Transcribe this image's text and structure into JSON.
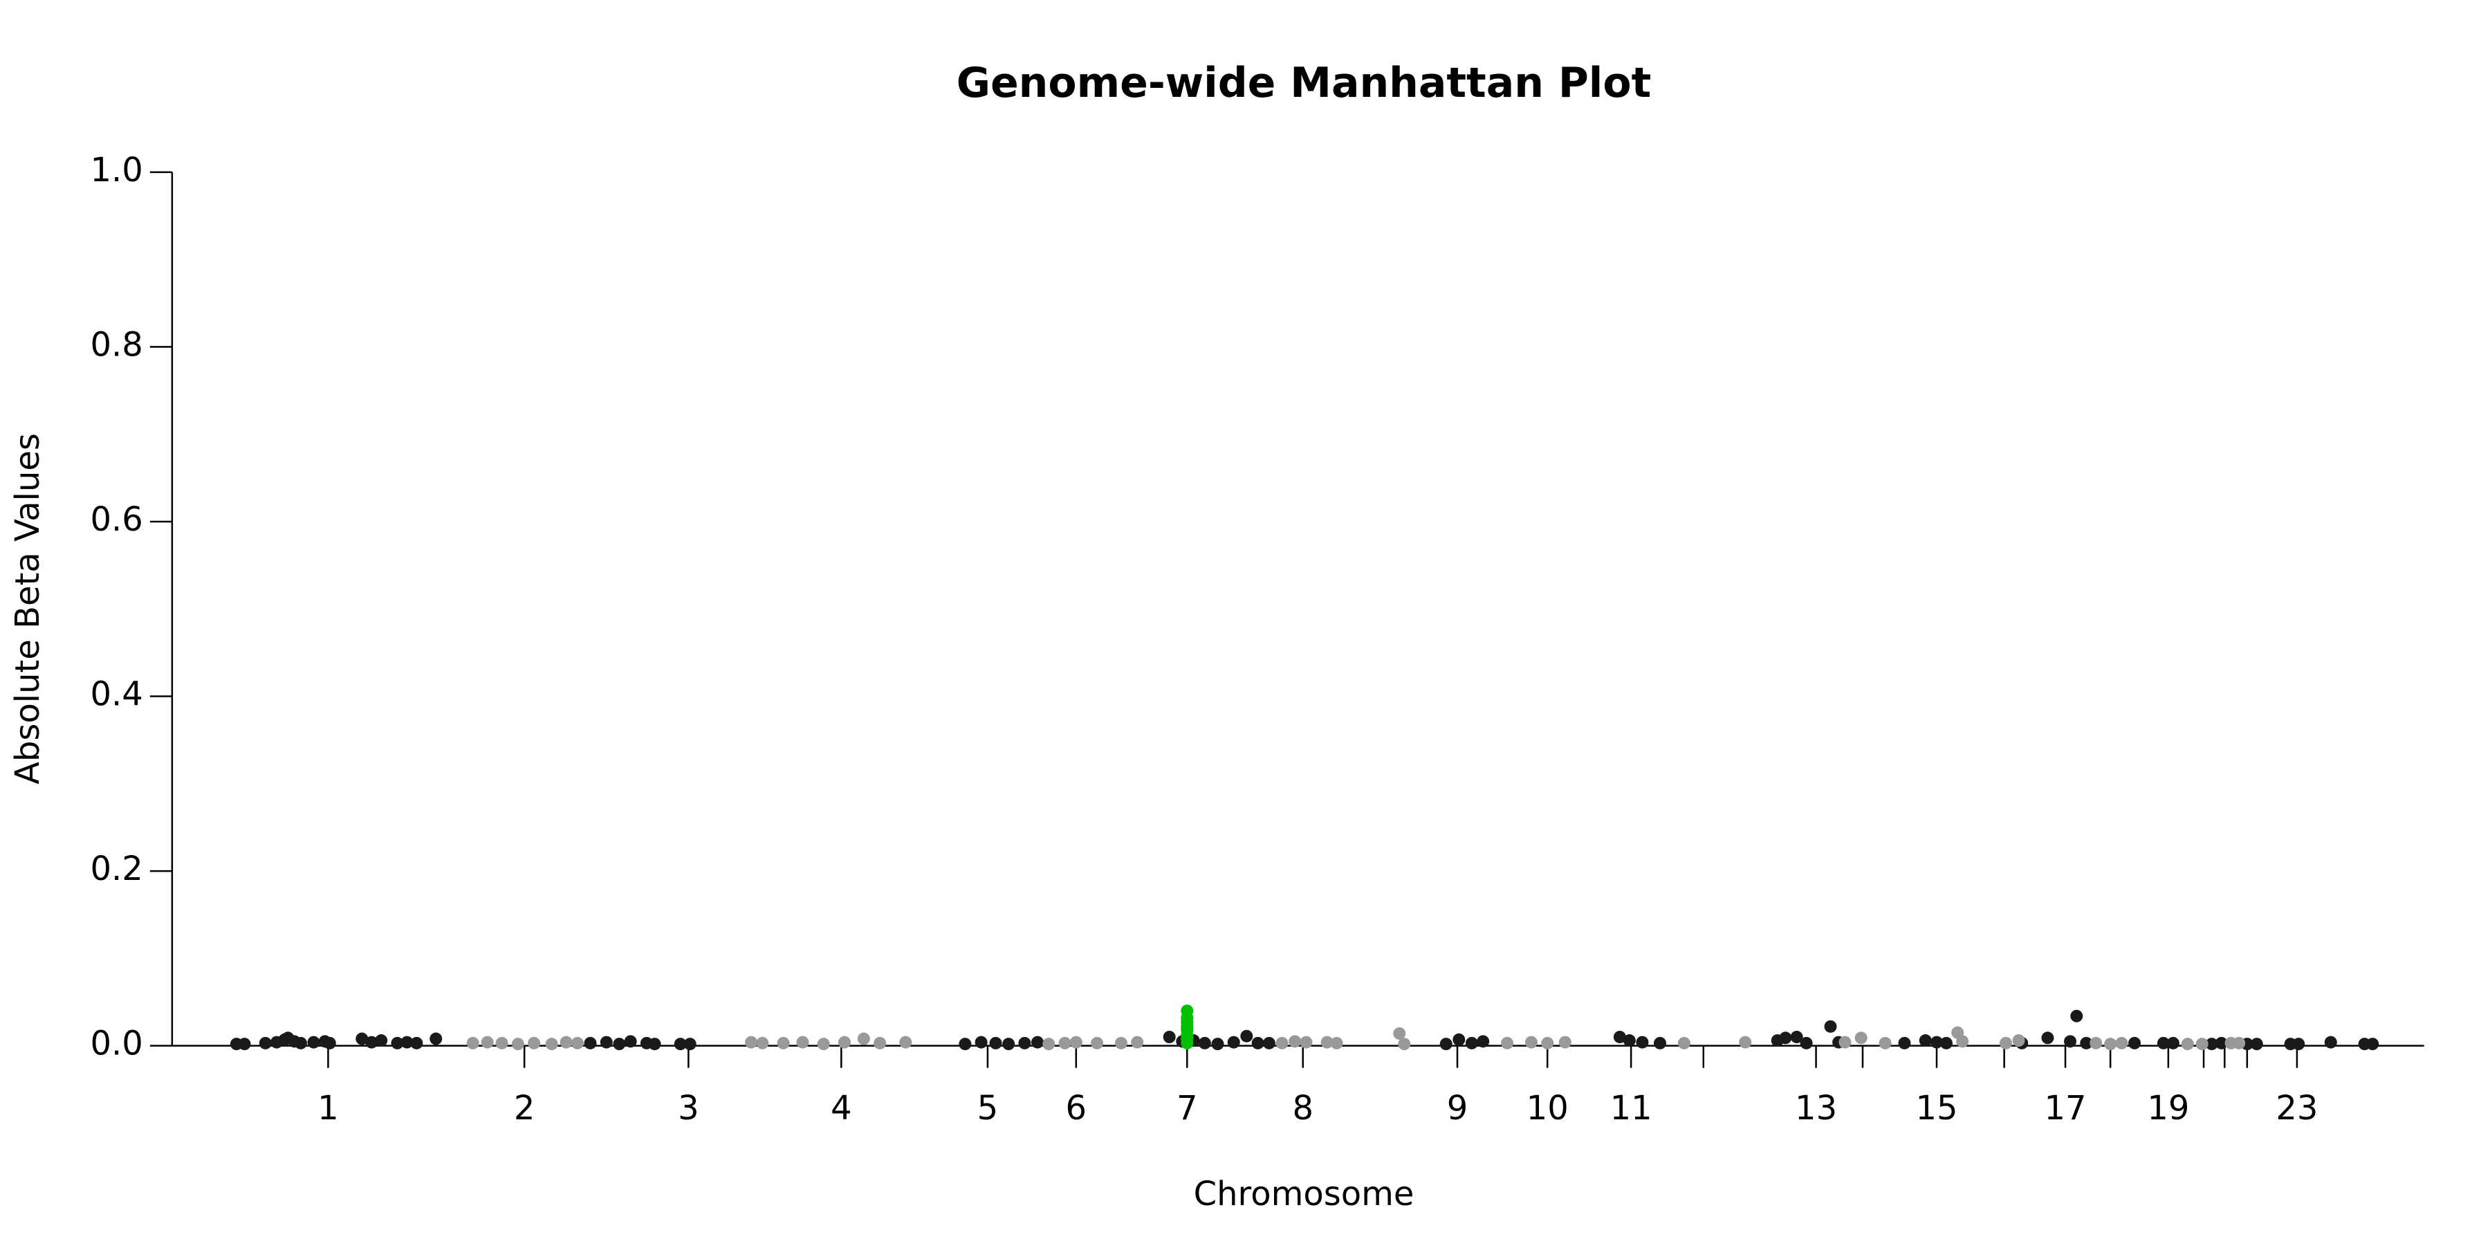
{
  "chart_data": {
    "type": "scatter",
    "title": "Genome-wide Manhattan Plot",
    "x_label": "Chromosome",
    "y_label": "Absolute Beta Values",
    "xlim": [
      0,
      1400
    ],
    "ylim": [
      0,
      1
    ],
    "yticks": [
      {
        "value": 0,
        "label": "0.0"
      },
      {
        "value": 0.2,
        "label": "0.2"
      },
      {
        "value": 0.4,
        "label": "0.4"
      },
      {
        "value": 0.6,
        "label": "0.6"
      },
      {
        "value": 0.8,
        "label": "0.8"
      },
      {
        "value": 1,
        "label": "1.0"
      }
    ],
    "xticks": [
      {
        "value": 97,
        "label": "1"
      },
      {
        "value": 219,
        "label": "2"
      },
      {
        "value": 321,
        "label": "3"
      },
      {
        "value": 416,
        "label": "4"
      },
      {
        "value": 507,
        "label": "5"
      },
      {
        "value": 562,
        "label": "6"
      },
      {
        "value": 631,
        "label": "7"
      },
      {
        "value": 703,
        "label": "8"
      },
      {
        "value": 799,
        "label": "9"
      },
      {
        "value": 855,
        "label": "10"
      },
      {
        "value": 907,
        "label": "11"
      },
      {
        "value": 952,
        "label": null
      },
      {
        "value": 1022,
        "label": "13"
      },
      {
        "value": 1051,
        "label": null
      },
      {
        "value": 1097,
        "label": "15"
      },
      {
        "value": 1139,
        "label": null
      },
      {
        "value": 1177,
        "label": "17"
      },
      {
        "value": 1205,
        "label": null
      },
      {
        "value": 1241,
        "label": "19"
      },
      {
        "value": 1263,
        "label": null
      },
      {
        "value": 1276,
        "label": null
      },
      {
        "value": 1290,
        "label": null
      },
      {
        "value": 1321,
        "label": "23"
      }
    ],
    "series": [
      {
        "color": "#1a1a1a",
        "x": [
          40,
          45,
          58,
          65,
          70,
          72,
          76,
          80,
          88,
          95,
          98,
          118,
          124,
          130,
          140,
          146,
          152,
          164,
          260,
          270,
          278,
          285,
          295,
          300,
          316,
          322,
          493,
          503,
          512,
          520,
          530,
          538,
          620,
          628,
          635,
          642,
          650,
          660,
          668,
          675,
          682,
          792,
          800,
          808,
          815,
          900,
          906,
          914,
          925,
          998,
          1003,
          1010,
          1016,
          1031,
          1036,
          1077,
          1090,
          1097,
          1103,
          1150,
          1166,
          1180,
          1184,
          1190,
          1220,
          1238,
          1244,
          1268,
          1274,
          1290,
          1296,
          1317,
          1322,
          1342,
          1363,
          1368
        ],
        "values": [
          0.002,
          0.002,
          0.003,
          0.004,
          0.007,
          0.009,
          0.005,
          0.003,
          0.004,
          0.005,
          0.003,
          0.008,
          0.004,
          0.006,
          0.003,
          0.004,
          0.003,
          0.008,
          0.003,
          0.004,
          0.002,
          0.005,
          0.003,
          0.002,
          0.002,
          0.002,
          0.002,
          0.004,
          0.003,
          0.002,
          0.003,
          0.004,
          0.01,
          0.005,
          0.006,
          0.003,
          0.002,
          0.004,
          0.011,
          0.003,
          0.003,
          0.002,
          0.007,
          0.003,
          0.005,
          0.01,
          0.006,
          0.004,
          0.003,
          0.006,
          0.009,
          0.01,
          0.003,
          0.022,
          0.004,
          0.003,
          0.006,
          0.004,
          0.003,
          0.003,
          0.009,
          0.005,
          0.034,
          0.003,
          0.003,
          0.003,
          0.003,
          0.002,
          0.003,
          0.002,
          0.002,
          0.002,
          0.002,
          0.004,
          0.002,
          0.002
        ]
      },
      {
        "color": "#999999",
        "x": [
          187,
          196,
          205,
          215,
          225,
          236,
          245,
          252,
          360,
          367,
          380,
          392,
          405,
          418,
          430,
          440,
          456,
          545,
          555,
          562,
          575,
          590,
          600,
          690,
          698,
          705,
          718,
          724,
          763,
          766,
          830,
          845,
          855,
          866,
          940,
          978,
          1040,
          1050,
          1065,
          1110,
          1113,
          1140,
          1148,
          1196,
          1205,
          1212,
          1253,
          1262,
          1280,
          1285
        ],
        "values": [
          0.003,
          0.004,
          0.003,
          0.002,
          0.003,
          0.002,
          0.004,
          0.003,
          0.004,
          0.003,
          0.003,
          0.004,
          0.002,
          0.004,
          0.008,
          0.003,
          0.004,
          0.002,
          0.003,
          0.004,
          0.003,
          0.003,
          0.004,
          0.003,
          0.005,
          0.004,
          0.004,
          0.003,
          0.014,
          0.002,
          0.003,
          0.004,
          0.003,
          0.004,
          0.003,
          0.004,
          0.004,
          0.009,
          0.003,
          0.015,
          0.005,
          0.003,
          0.006,
          0.003,
          0.002,
          0.003,
          0.002,
          0.002,
          0.003,
          0.003
        ]
      },
      {
        "color": "#00c000",
        "x": [
          631,
          631,
          631,
          631,
          631,
          631,
          631,
          631
        ],
        "values": [
          0.003,
          0.008,
          0.012,
          0.018,
          0.022,
          0.027,
          0.032,
          0.04
        ]
      }
    ]
  }
}
